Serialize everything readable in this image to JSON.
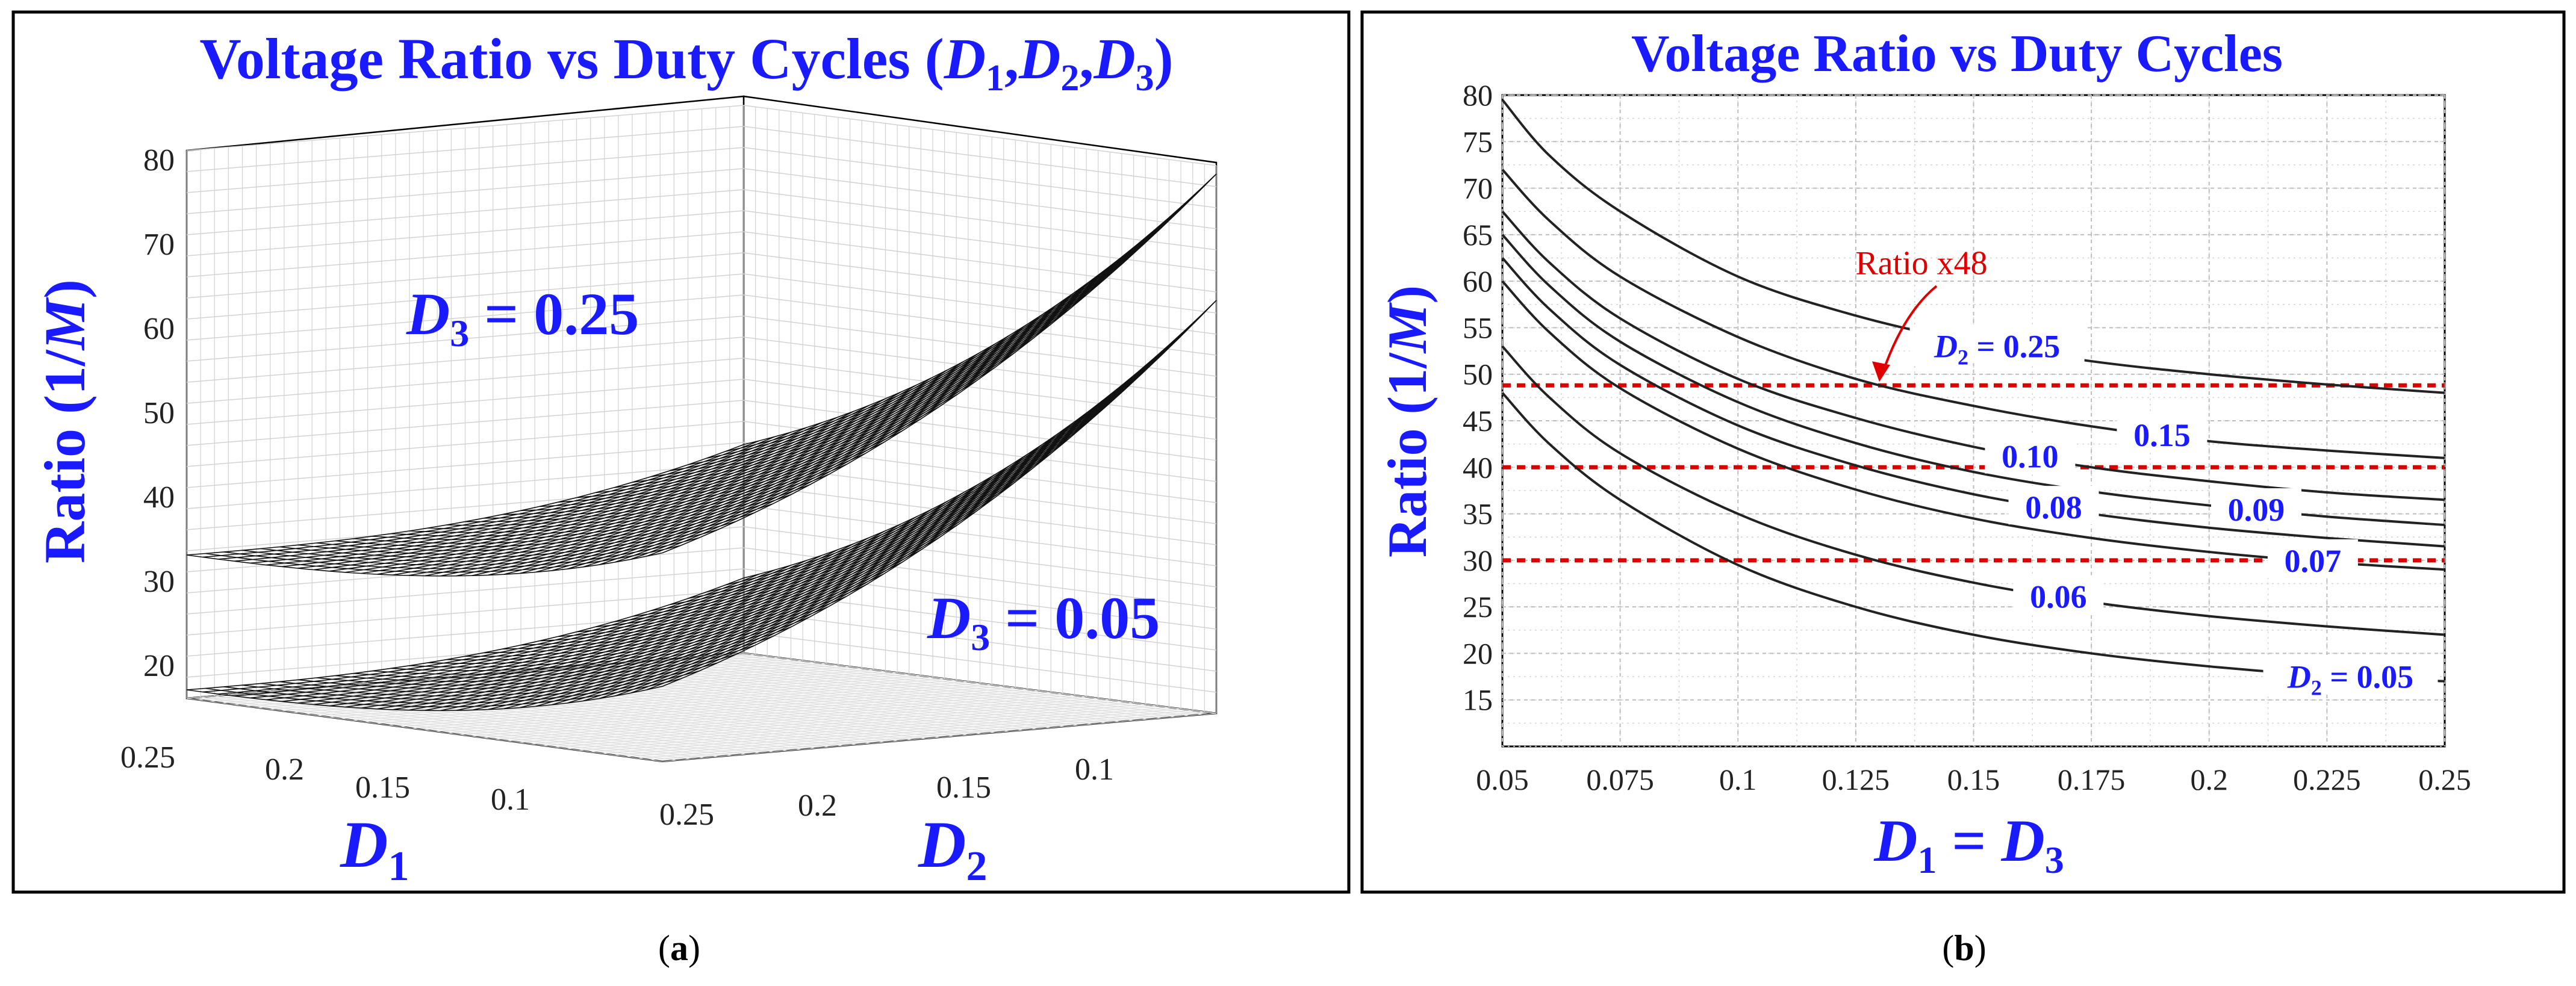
{
  "captions": {
    "a_open": "(",
    "a_letter": "a",
    "a_close": ")",
    "b_open": "(",
    "b_letter": "b",
    "b_close": ")"
  },
  "colors": {
    "title": "#1a1aff",
    "curve": "#222222",
    "ref_line": "#e00000",
    "grid": "#c8c8c8",
    "surface": "#111111"
  },
  "chart_data": [
    {
      "id": "a",
      "type": "surface3d",
      "title": "Voltage Ratio vs Duty Cycles (D1,D2,D3)",
      "title_parts": {
        "main": "Voltage Ratio vs Duty Cycles (",
        "D": "D",
        "s1": "1",
        "comma1": ",",
        "s2": "2",
        "comma2": ",",
        "s3": "3",
        "close": ")"
      },
      "xlabel": {
        "base": "D",
        "sub": "1"
      },
      "ylabel": {
        "base": "D",
        "sub": "2"
      },
      "zlabel": {
        "main": "Ratio (1/",
        "italic": "M",
        "close": ")"
      },
      "zlim": [
        15,
        80
      ],
      "zticks": [
        "20",
        "30",
        "40",
        "50",
        "60",
        "70",
        "80"
      ],
      "xticks": [
        "0.25",
        "0.2",
        "0.15",
        "0.1"
      ],
      "yticks": [
        "0.25",
        "0.2",
        "0.15",
        "0.1"
      ],
      "surfaces": [
        {
          "name": "D3 = 0.25",
          "label_base": "D",
          "label_sub": "3",
          "label_val": " = 0.25",
          "z_at_D1_025_D2_025": 32,
          "z_at_D1_005_D2_005": 79
        },
        {
          "name": "D3 = 0.05",
          "label_base": "D",
          "label_sub": "3",
          "label_val": " = 0.05",
          "z_at_D1_025_D2_025": 16,
          "z_at_D1_005_D2_005": 64
        }
      ]
    },
    {
      "id": "b",
      "type": "line",
      "title": "Voltage Ratio vs Duty Cycles",
      "xlabel": "D1 = D3",
      "xlabel_parts": {
        "b1": "D",
        "s1": "1",
        "mid": " = ",
        "b2": "D",
        "s2": "3"
      },
      "ylabel": {
        "main": "Ratio (1/",
        "italic": "M",
        "close": ")"
      },
      "xlim": [
        0.05,
        0.25
      ],
      "ylim": [
        10,
        80
      ],
      "xticks": [
        0.05,
        0.075,
        0.1,
        0.125,
        0.15,
        0.175,
        0.2,
        0.225,
        0.25
      ],
      "xtick_labels": [
        "0.05",
        "0.075",
        "0.1",
        "0.125",
        "0.15",
        "0.175",
        "0.2",
        "0.225",
        "0.25"
      ],
      "yticks": [
        15,
        20,
        25,
        30,
        35,
        40,
        45,
        50,
        55,
        60,
        65,
        70,
        75,
        80
      ],
      "ytick_labels": [
        "15",
        "20",
        "25",
        "30",
        "35",
        "40",
        "45",
        "50",
        "55",
        "60",
        "65",
        "70",
        "75",
        "80"
      ],
      "series": [
        {
          "name": "D2 = 0.25",
          "label": "= 0.25",
          "label_prefix": "D",
          "label_sub": "2",
          "x": [
            0.05,
            0.06,
            0.075,
            0.1,
            0.125,
            0.15,
            0.175,
            0.2,
            0.225,
            0.25
          ],
          "values": [
            79.5,
            73.5,
            67.5,
            60.5,
            56.3,
            53.4,
            51.4,
            50.0,
            48.9,
            48.0
          ],
          "label_at": 0.155
        },
        {
          "name": "0.15",
          "label": "0.15",
          "x": [
            0.05,
            0.06,
            0.075,
            0.1,
            0.125,
            0.15,
            0.175,
            0.2,
            0.225,
            0.25
          ],
          "values": [
            72.0,
            66.5,
            60.5,
            54.0,
            49.5,
            46.6,
            44.4,
            42.8,
            41.8,
            41.0
          ],
          "label_at": 0.19
        },
        {
          "name": "0.10",
          "label": "0.10",
          "x": [
            0.05,
            0.06,
            0.075,
            0.1,
            0.125,
            0.15,
            0.175,
            0.2,
            0.225,
            0.25
          ],
          "values": [
            67.5,
            62.0,
            56.0,
            49.5,
            45.3,
            42.2,
            40.0,
            38.5,
            37.3,
            36.5
          ],
          "label_at": 0.162
        },
        {
          "name": "0.09",
          "label": "0.09",
          "x": [
            0.05,
            0.06,
            0.075,
            0.1,
            0.125,
            0.15,
            0.175,
            0.2,
            0.225,
            0.25
          ],
          "values": [
            65.0,
            59.5,
            53.5,
            47.0,
            42.6,
            39.5,
            37.4,
            35.9,
            34.7,
            33.8
          ],
          "label_at": 0.21
        },
        {
          "name": "0.08",
          "label": "0.08",
          "x": [
            0.05,
            0.06,
            0.075,
            0.1,
            0.125,
            0.15,
            0.175,
            0.2,
            0.225,
            0.25
          ],
          "values": [
            62.5,
            57.0,
            51.0,
            44.5,
            40.2,
            37.1,
            35.0,
            33.5,
            32.4,
            31.5
          ],
          "label_at": 0.167
        },
        {
          "name": "0.07",
          "label": "0.07",
          "x": [
            0.05,
            0.06,
            0.075,
            0.1,
            0.125,
            0.15,
            0.175,
            0.2,
            0.225,
            0.25
          ],
          "values": [
            60.0,
            54.5,
            48.5,
            42.0,
            37.6,
            34.5,
            32.4,
            30.9,
            29.8,
            29.0
          ],
          "label_at": 0.222
        },
        {
          "name": "0.06",
          "label": "0.06",
          "x": [
            0.05,
            0.06,
            0.075,
            0.1,
            0.125,
            0.15,
            0.175,
            0.2,
            0.225,
            0.25
          ],
          "values": [
            53.0,
            47.5,
            41.5,
            35.0,
            30.6,
            27.6,
            25.5,
            24.0,
            22.9,
            22.0
          ],
          "label_at": 0.168
        },
        {
          "name": "D2 = 0.05",
          "label": "= 0.05",
          "label_prefix": "D",
          "label_sub": "2",
          "x": [
            0.05,
            0.06,
            0.075,
            0.1,
            0.125,
            0.15,
            0.175,
            0.2,
            0.225,
            0.25
          ],
          "values": [
            48.0,
            42.5,
            36.5,
            29.5,
            25.0,
            22.0,
            20.0,
            18.6,
            17.6,
            17.0
          ],
          "label_at": 0.23
        }
      ],
      "reference_lines": [
        {
          "y": 48.8
        },
        {
          "y": 40.0
        },
        {
          "y": 30.0
        }
      ],
      "annotation": {
        "text": "Ratio x48",
        "target_x": 0.13,
        "target_y": 48.8
      }
    }
  ]
}
